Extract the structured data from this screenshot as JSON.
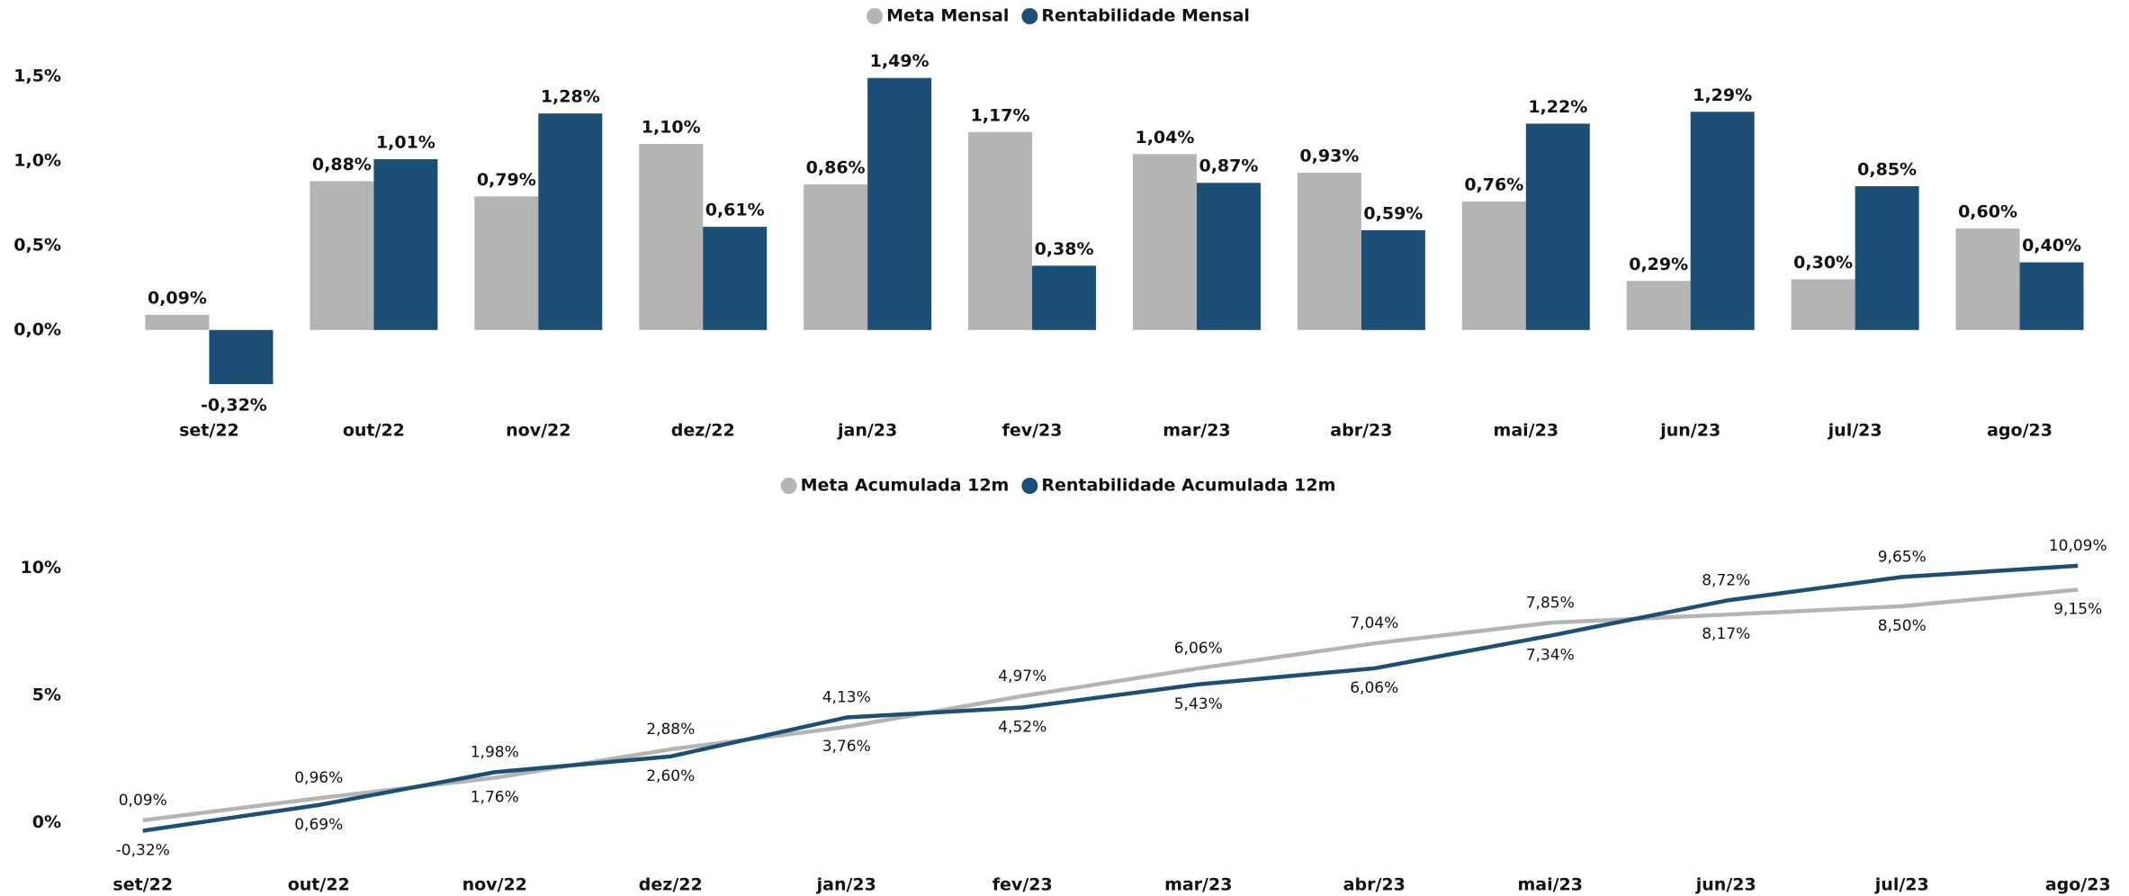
{
  "chart_data": [
    {
      "type": "bar",
      "legend": "top",
      "categories": [
        "set/22",
        "out/22",
        "nov/22",
        "dez/22",
        "jan/23",
        "fev/23",
        "mar/23",
        "abr/23",
        "mai/23",
        "jun/23",
        "jul/23",
        "ago/23"
      ],
      "series": [
        {
          "name": "Meta Mensal",
          "color": "#b4b4b4",
          "values": [
            0.09,
            0.88,
            0.79,
            1.1,
            0.86,
            1.17,
            1.04,
            0.93,
            0.76,
            0.29,
            0.3,
            0.6
          ],
          "value_labels": [
            "0,09%",
            "0,88%",
            "0,79%",
            "1,10%",
            "0,86%",
            "1,17%",
            "1,04%",
            "0,93%",
            "0,76%",
            "0,29%",
            "0,30%",
            "0,60%"
          ]
        },
        {
          "name": "Rentabilidade Mensal",
          "color": "#1b4f75",
          "values": [
            -0.32,
            1.01,
            1.28,
            0.61,
            1.49,
            0.38,
            0.87,
            0.59,
            1.22,
            1.29,
            0.85,
            0.4
          ],
          "value_labels": [
            "-0,32%",
            "1,01%",
            "1,28%",
            "0,61%",
            "1,49%",
            "0,38%",
            "0,87%",
            "0,59%",
            "1,22%",
            "1,29%",
            "0,85%",
            "0,40%"
          ]
        }
      ],
      "ylim": [
        -0.4,
        1.6
      ],
      "yticks": [
        {
          "value": 0,
          "label": "0,0%"
        },
        {
          "value": 0.5,
          "label": "0,5%"
        },
        {
          "value": 1.0,
          "label": "1,0%"
        },
        {
          "value": 1.5,
          "label": "1,5%"
        }
      ]
    },
    {
      "type": "line",
      "legend": "top",
      "categories": [
        "set/22",
        "out/22",
        "nov/22",
        "dez/22",
        "jan/23",
        "fev/23",
        "mar/23",
        "abr/23",
        "mai/23",
        "jun/23",
        "jul/23",
        "ago/23"
      ],
      "series": [
        {
          "name": "Meta Acumulada 12m",
          "color": "#b4b4b4",
          "values": [
            0.09,
            0.96,
            1.76,
            2.88,
            3.76,
            4.97,
            6.06,
            7.04,
            7.85,
            8.17,
            8.5,
            9.15
          ],
          "value_labels": [
            "0,09%",
            "0,96%",
            "1,76%",
            "2,88%",
            "3,76%",
            "4,97%",
            "6,06%",
            "7,04%",
            "7,85%",
            "8,17%",
            "8,50%",
            "9,15%"
          ]
        },
        {
          "name": "Rentabilidade Acumulada 12m",
          "color": "#1b4f75",
          "values": [
            -0.32,
            0.69,
            1.98,
            2.6,
            4.13,
            4.52,
            5.43,
            6.06,
            7.34,
            8.72,
            9.65,
            10.09
          ],
          "value_labels": [
            "-0,32%",
            "0,69%",
            "1,98%",
            "2,60%",
            "4,13%",
            "4,52%",
            "5,43%",
            "6,06%",
            "7,34%",
            "8,72%",
            "9,65%",
            "10,09%"
          ]
        }
      ],
      "ylim": [
        -2,
        11.5
      ],
      "yticks": [
        {
          "value": 0,
          "label": "0%"
        },
        {
          "value": 5,
          "label": "5%"
        },
        {
          "value": 10,
          "label": "10%"
        }
      ]
    }
  ]
}
